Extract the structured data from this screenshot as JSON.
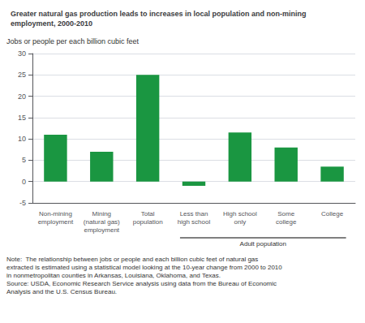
{
  "chart_data": {
    "type": "bar",
    "title": "Greater natural gas production leads to increases in local population and non-mining\nemployment, 2000-2010",
    "ylabel": "Jobs or people per each billion cubic feet",
    "categories": [
      "Non-mining\nemployment",
      "Mining\n(natural gas)\nemployment",
      "Total\npopulation",
      "Less than\nhigh school",
      "High school\nonly",
      "Some\ncollege",
      "College"
    ],
    "values": [
      11,
      7,
      25,
      -1,
      11.5,
      8,
      3.5
    ],
    "color": "#1a9641",
    "ylim": [
      -5,
      30
    ],
    "yticks": [
      -5,
      0,
      5,
      10,
      15,
      20,
      25,
      30
    ],
    "grid": true,
    "annotations": [
      {
        "text": "Adult population",
        "from": "Less than\nhigh school",
        "to": "College"
      },
      {
        "text": "Note:  The relationship between jobs or people and each billion cubic feet of natural gas\nextracted is estimated using a statistical model looking at the 10-year change from 2000 to 2010\nin nonmetropolitan counties in Arkansas, Louisiana, Oklahoma, and Texas.\nSource: USDA, Economic Research Service analysis using data from the Bureau of Economic\nAnalysis and the U.S. Census Bureau."
      }
    ]
  }
}
